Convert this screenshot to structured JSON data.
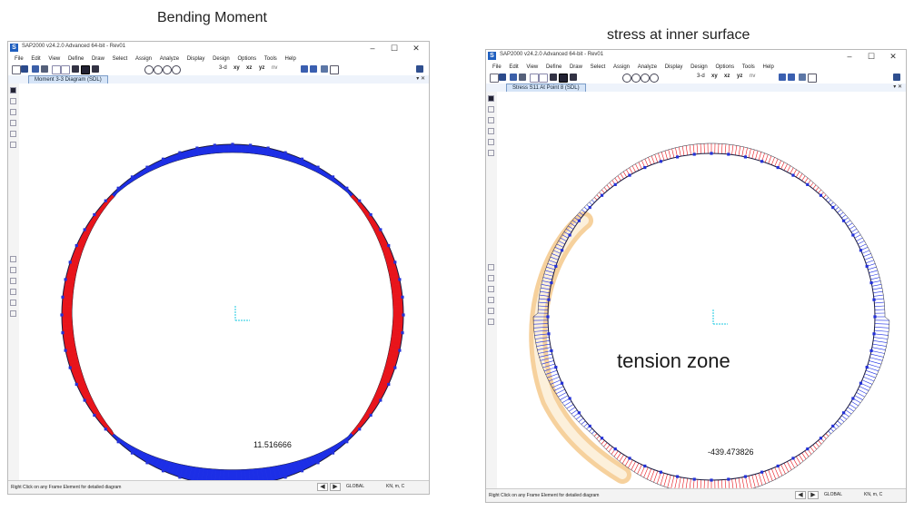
{
  "captions": {
    "left": "Bending Moment",
    "right": "stress at inner surface"
  },
  "app": {
    "title": "SAP2000 v24.2.0 Advanced 64-bit - Rev01",
    "icon_letter": "S",
    "window_controls": [
      "–",
      "☐",
      "✕"
    ]
  },
  "menu": [
    "File",
    "Edit",
    "View",
    "Define",
    "Draw",
    "Select",
    "Assign",
    "Analyze",
    "Display",
    "Design",
    "Options",
    "Tools",
    "Help"
  ],
  "toolbar": {
    "view_labels": [
      "3-d",
      "xy",
      "xz",
      "yz",
      "nv"
    ]
  },
  "windows": [
    {
      "tab": "Moment 3-3 Diagram (SDL)",
      "value_label": "11.516666",
      "status": "Right Click on any Frame Element for detailed diagram",
      "coord_system": "GLOBAL",
      "units": "KN, m, C"
    },
    {
      "tab": "Stress S11 At Point 8 (SDL)",
      "value_label": "-439.473826",
      "annotation": "tension zone",
      "status": "Right Click on any Frame Element for detailed diagram",
      "coord_system": "GLOBAL",
      "units": "KN, m, C"
    }
  ],
  "colors": {
    "positive": "#e8141b",
    "negative": "#1c2ee6",
    "highlight": "#f5c98c",
    "axis": "#19c9e0"
  }
}
